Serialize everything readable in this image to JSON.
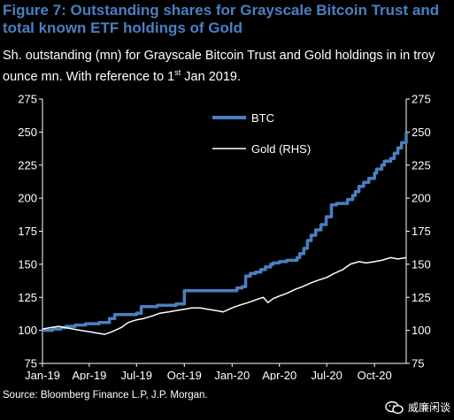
{
  "header": {
    "title": "Figure 7: Outstanding shares for Grayscale Bitcoin Trust and total known ETF holdings of Gold",
    "subtitle_main": "Sh. outstanding (mn) for Grayscale Bitcoin Trust and Gold holdings in in troy ounce mn. With reference to 1",
    "subtitle_sup": "st",
    "subtitle_end": " Jan 2019."
  },
  "footer": {
    "source": "Source: Bloomberg Finance L.P, J.P. Morgan.",
    "watermark": "威廉闲谈"
  },
  "colors": {
    "btc": "#4a7fc0",
    "gold": "#ffffff",
    "title": "#4a7fc0",
    "background": "#000000"
  },
  "chart_data": {
    "type": "line",
    "title": "",
    "x_tick_labels": [
      "Jan-19",
      "Apr-19",
      "Jul-19",
      "Oct-19",
      "Jan-20",
      "Apr-20",
      "Jul-20",
      "Oct-20"
    ],
    "x_ticks": [
      "2019-01-01",
      "2019-04-01",
      "2019-07-01",
      "2019-10-01",
      "2020-01-01",
      "2020-04-01",
      "2020-07-01",
      "2020-10-01"
    ],
    "xlim": [
      "2019-01-01",
      "2020-12-01"
    ],
    "y_left": {
      "ylim": [
        75,
        275
      ],
      "ticks": [
        "75",
        "100",
        "125",
        "150",
        "175",
        "200",
        "225",
        "250",
        "275"
      ]
    },
    "y_right": {
      "ylim": [
        75,
        275
      ],
      "ticks": [
        "75",
        "100",
        "125",
        "150",
        "175",
        "200",
        "225",
        "250",
        "275"
      ]
    },
    "legend_position": "top-center",
    "grid": false,
    "series": [
      {
        "name": "BTC",
        "axis": "left",
        "style": "step",
        "x": [
          "2019-01-01",
          "2019-01-20",
          "2019-02-05",
          "2019-02-15",
          "2019-03-05",
          "2019-03-25",
          "2019-04-20",
          "2019-05-10",
          "2019-05-20",
          "2019-06-25",
          "2019-07-01",
          "2019-07-10",
          "2019-08-10",
          "2019-09-15",
          "2019-09-26",
          "2019-10-01",
          "2019-12-22",
          "2020-01-01",
          "2020-01-10",
          "2020-01-20",
          "2020-01-27",
          "2020-02-05",
          "2020-02-15",
          "2020-02-25",
          "2020-03-05",
          "2020-03-15",
          "2020-03-20",
          "2020-04-01",
          "2020-04-15",
          "2020-04-25",
          "2020-05-05",
          "2020-05-10",
          "2020-05-18",
          "2020-05-25",
          "2020-06-01",
          "2020-06-10",
          "2020-06-20",
          "2020-06-30",
          "2020-07-10",
          "2020-07-20",
          "2020-08-01",
          "2020-08-10",
          "2020-08-20",
          "2020-08-25",
          "2020-09-01",
          "2020-09-10",
          "2020-09-20",
          "2020-10-01",
          "2020-10-05",
          "2020-10-15",
          "2020-10-20",
          "2020-11-01",
          "2020-11-08",
          "2020-11-15",
          "2020-11-22",
          "2020-12-01"
        ],
        "y": [
          100,
          101,
          102,
          103,
          104,
          105,
          106,
          109,
          112,
          112,
          113,
          118,
          119,
          120,
          120,
          130,
          130,
          130,
          132,
          133,
          141,
          143,
          144,
          146,
          148,
          150,
          151,
          152,
          153,
          153,
          155,
          158,
          162,
          168,
          172,
          176,
          180,
          186,
          195,
          196,
          196,
          199,
          202,
          205,
          209,
          212,
          215,
          219,
          222,
          225,
          228,
          230,
          234,
          238,
          242,
          250
        ]
      },
      {
        "name": "Gold (RHS)",
        "axis": "right",
        "style": "line",
        "x": [
          "2019-01-01",
          "2019-01-15",
          "2019-02-01",
          "2019-02-15",
          "2019-03-01",
          "2019-03-15",
          "2019-04-01",
          "2019-04-15",
          "2019-05-01",
          "2019-05-15",
          "2019-06-01",
          "2019-06-15",
          "2019-07-01",
          "2019-07-15",
          "2019-08-01",
          "2019-08-15",
          "2019-09-01",
          "2019-09-15",
          "2019-10-01",
          "2019-10-15",
          "2019-11-01",
          "2019-11-15",
          "2019-12-01",
          "2019-12-15",
          "2020-01-01",
          "2020-01-15",
          "2020-02-01",
          "2020-02-15",
          "2020-03-01",
          "2020-03-10",
          "2020-03-20",
          "2020-04-01",
          "2020-04-15",
          "2020-05-01",
          "2020-05-15",
          "2020-06-01",
          "2020-06-15",
          "2020-07-01",
          "2020-07-15",
          "2020-08-01",
          "2020-08-15",
          "2020-09-01",
          "2020-09-15",
          "2020-10-01",
          "2020-10-15",
          "2020-11-01",
          "2020-11-15",
          "2020-12-01"
        ],
        "y": [
          101,
          102,
          103,
          102,
          101,
          100,
          99,
          98,
          97,
          99,
          102,
          106,
          108,
          109,
          111,
          113,
          114,
          115,
          116,
          117,
          117,
          116,
          115,
          114,
          117,
          119,
          121,
          123,
          125,
          121,
          124,
          126,
          128,
          131,
          133,
          136,
          138,
          140,
          143,
          146,
          150,
          152,
          151,
          152,
          153,
          155,
          154,
          155
        ]
      }
    ]
  }
}
